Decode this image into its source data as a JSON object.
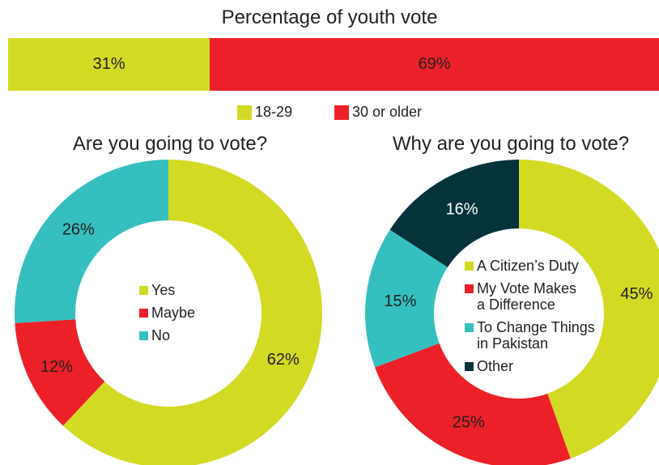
{
  "chart_data": [
    {
      "type": "bar",
      "subtype": "stacked-horizontal",
      "title": "Percentage of youth vote",
      "series": [
        {
          "name": "18-29",
          "value": 31,
          "label": "31%",
          "color": "#d3da24"
        },
        {
          "name": "30 or older",
          "value": 69,
          "label": "69%",
          "color": "#ec2028"
        }
      ],
      "legend": "bottom"
    },
    {
      "type": "pie",
      "subtype": "donut",
      "title": "Are you going to vote?",
      "slices": [
        {
          "name": "Yes",
          "value": 62,
          "label": "62%",
          "color": "#d3da24"
        },
        {
          "name": "Maybe",
          "value": 12,
          "label": "12%",
          "color": "#ec2028"
        },
        {
          "name": "No",
          "value": 26,
          "label": "26%",
          "color": "#36bfbf"
        }
      ],
      "legend": "center"
    },
    {
      "type": "pie",
      "subtype": "donut",
      "title": "Why are you going to vote?",
      "slices": [
        {
          "name": "A Citizen’s Duty",
          "value": 45,
          "label": "45%",
          "color": "#d3da24"
        },
        {
          "name": "My Vote Makes\na Difference",
          "value": 25,
          "label": "25%",
          "color": "#ec2028"
        },
        {
          "name": "To Change Things\nin Pakistan",
          "value": 15,
          "label": "15%",
          "color": "#36bfbf"
        },
        {
          "name": "Other",
          "value": 16,
          "label": "16%",
          "color": "#04333a"
        }
      ],
      "legend": "center"
    }
  ]
}
